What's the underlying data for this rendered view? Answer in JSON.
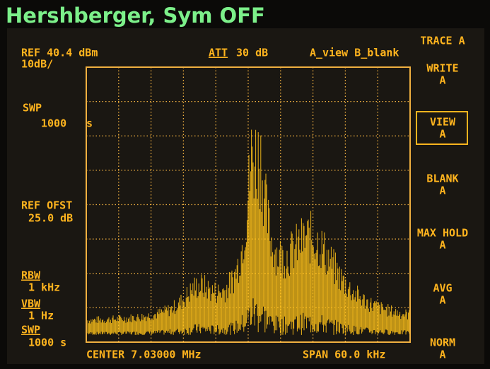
{
  "overlay_title": "Hershberger, Sym OFF",
  "header": {
    "ref": "REF 40.4 dBm",
    "scale": "10dB/",
    "att": "ATT",
    "att_value": "30 dB",
    "view": "A_view B_blank"
  },
  "left": {
    "swp_label": "SWP",
    "swp_value": "1000",
    "swp_unit": "s",
    "ref_ofst_label": "REF OFST",
    "ref_ofst_value": "25.0 dB",
    "rbw_label": "RBW",
    "rbw_value": "1 kHz",
    "vbw_label": "VBW",
    "vbw_value": "1 Hz",
    "swp2_label": "SWP",
    "swp2_value": "1000 s"
  },
  "footer": {
    "center": "CENTER 7.03000 MHz",
    "span": "SPAN 60.0 kHz"
  },
  "softkeys": {
    "title": "TRACE A",
    "keys": [
      {
        "label": "WRITE",
        "sub": "A"
      },
      {
        "label": "VIEW",
        "sub": "A"
      },
      {
        "label": "BLANK",
        "sub": "A"
      },
      {
        "label": "MAX HOLD",
        "sub": "A"
      },
      {
        "label": "AVG",
        "sub": "A"
      },
      {
        "label": "NORM",
        "sub": "A"
      }
    ]
  }
}
